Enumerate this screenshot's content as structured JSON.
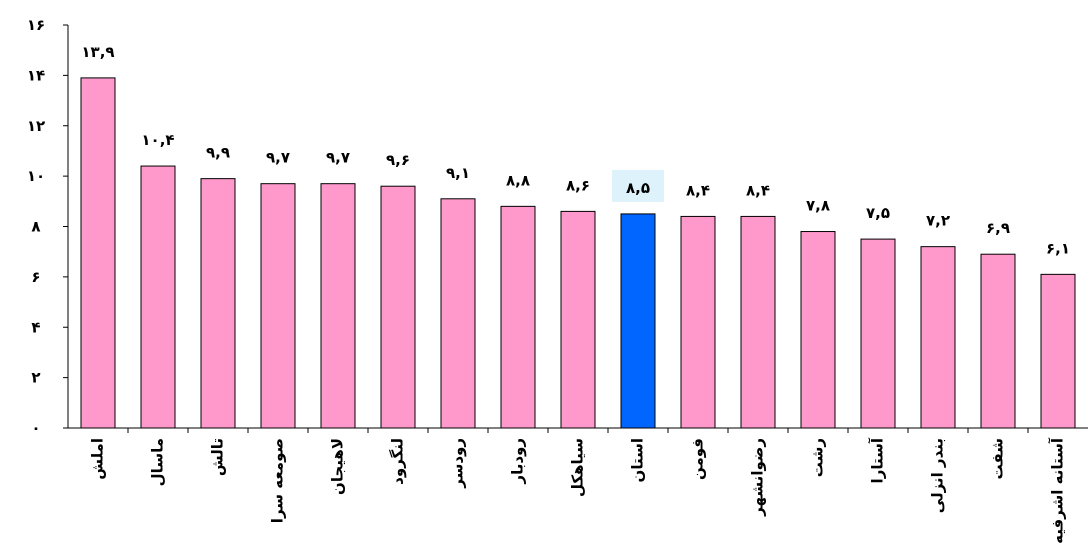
{
  "chart_data": {
    "type": "bar",
    "categories": [
      "املش",
      "ماسال",
      "تالش",
      "صومعه سرا",
      "لاهیجان",
      "لنگرود",
      "رودسر",
      "رودبار",
      "سیاهکل",
      "استان",
      "فومن",
      "رضوانشهر",
      "رشت",
      "آستارا",
      "بندر انزلی",
      "شفت",
      "آستانه اشرفیه"
    ],
    "values": [
      13.9,
      10.4,
      9.9,
      9.7,
      9.7,
      9.6,
      9.1,
      8.8,
      8.6,
      8.5,
      8.4,
      8.4,
      7.8,
      7.5,
      7.2,
      6.9,
      6.1
    ],
    "value_labels": [
      "۱۳,۹",
      "۱۰,۴",
      "۹,۹",
      "۹,۷",
      "۹,۷",
      "۹,۶",
      "۹,۱",
      "۸,۸",
      "۸,۶",
      "۸,۵",
      "۸,۴",
      "۸,۴",
      "۷,۸",
      "۷,۵",
      "۷,۲",
      "۶,۹",
      "۶,۱"
    ],
    "highlight_index": 9,
    "ylim": [
      0,
      16
    ],
    "yticks": [
      0,
      2,
      4,
      6,
      8,
      10,
      12,
      14,
      16
    ],
    "ytick_labels": [
      "۰",
      "۲",
      "۴",
      "۶",
      "۸",
      "۱۰",
      "۱۲",
      "۱۴",
      "۱۶"
    ],
    "bar_color": "#ff99cc",
    "highlight_color": "#0066ff",
    "highlight_label_bg": "#ddf2fb",
    "grid": false,
    "legend": "none",
    "title": "",
    "xlabel": "",
    "ylabel": ""
  }
}
